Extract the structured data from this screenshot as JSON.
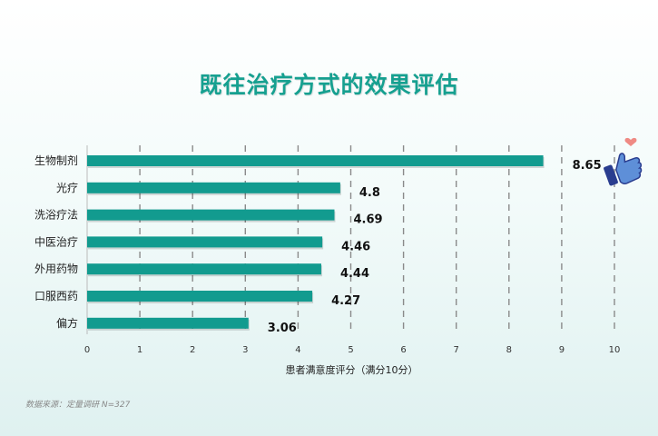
{
  "chart_data": {
    "type": "bar",
    "orientation": "horizontal",
    "title": "既往治疗方式的效果评估",
    "categories": [
      "生物制剂",
      "光疗",
      "洗浴疗法",
      "中医治疗",
      "外用药物",
      "口服西药",
      "偏方"
    ],
    "values": [
      8.65,
      4.8,
      4.69,
      4.46,
      4.44,
      4.27,
      3.06
    ],
    "value_labels": [
      "8.65",
      "4.8",
      "4.69",
      "4.46",
      "4.44",
      "4.27",
      "3.06"
    ],
    "xlabel": "患者满意度评分（满分10分）",
    "ylabel": "",
    "xlim": [
      0,
      10
    ],
    "xticks": [
      "0",
      "1",
      "2",
      "3",
      "4",
      "5",
      "6",
      "7",
      "8",
      "9",
      "10"
    ],
    "grid": "vertical dashed",
    "bar_color": "#129b8f",
    "highlight_icon": "thumbs-up-icon"
  },
  "source": "数据来源：定量调研 N=327"
}
